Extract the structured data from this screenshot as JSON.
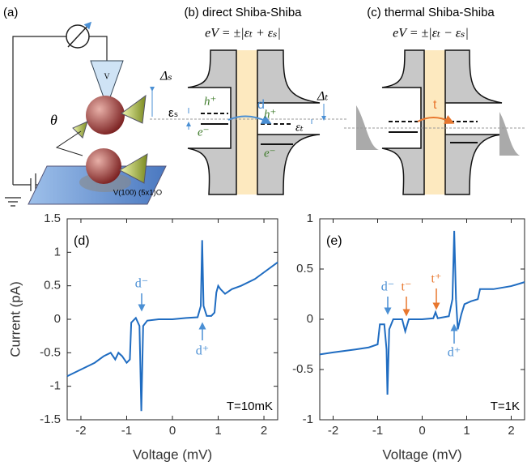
{
  "diagram": {
    "panel_a": {
      "label": "(a)",
      "tip_label": "V",
      "angle_label": "θ",
      "substrate_label": "V(100) (5x1)O"
    },
    "panel_b": {
      "title": "(b) direct Shiba-Shiba",
      "formula": "eV = ±|εₜ + εₛ|",
      "delta_s": "Δₛ",
      "delta_t": "Δₜ",
      "eps_s": "εₛ",
      "eps_t": "εₜ",
      "hole_left": "h⁺",
      "electron_left": "e⁻",
      "hole_right": "h⁺",
      "electron_right": "e⁻",
      "process": "d"
    },
    "panel_c": {
      "title": "(c) thermal Shiba-Shiba",
      "formula": "eV = ±|εₜ − εₛ|",
      "process": "t"
    }
  },
  "chart_data": [
    {
      "type": "line",
      "panel_label": "(d)",
      "xlabel": "Voltage (mV)",
      "ylabel": "Current (pA)",
      "temperature": "T=10mK",
      "annotations": [
        "d⁻",
        "d⁺"
      ],
      "xlim": [
        -2.3,
        2.3
      ],
      "xticks": [
        -2,
        -1,
        0,
        1,
        2
      ],
      "ylim": [
        -1.5,
        1.5
      ],
      "yticks": [
        -1.5,
        -1,
        -0.5,
        0,
        0.5,
        1,
        1.5
      ],
      "series": [
        {
          "color": "#1f6cc1",
          "x": [
            -2.3,
            -2.0,
            -1.7,
            -1.5,
            -1.35,
            -1.25,
            -1.18,
            -1.1,
            -1.0,
            -0.93,
            -0.9,
            -0.8,
            -0.72,
            -0.68,
            -0.64,
            -0.55,
            -0.3,
            0,
            0.3,
            0.55,
            0.62,
            0.65,
            0.68,
            0.75,
            0.85,
            0.92,
            0.96,
            1.0,
            1.05,
            1.15,
            1.3,
            1.5,
            1.8,
            2.0,
            2.3
          ],
          "values": [
            -0.85,
            -0.75,
            -0.65,
            -0.55,
            -0.5,
            -0.6,
            -0.5,
            -0.55,
            -0.65,
            -0.6,
            -0.05,
            0.02,
            -0.1,
            -1.37,
            -0.1,
            -0.02,
            0,
            0,
            0.02,
            0.03,
            0.2,
            1.18,
            0.2,
            0.05,
            0.05,
            0.1,
            0.4,
            0.5,
            0.45,
            0.38,
            0.45,
            0.5,
            0.6,
            0.7,
            0.85
          ]
        }
      ]
    },
    {
      "type": "line",
      "panel_label": "(e)",
      "xlabel": "Voltage (mV)",
      "temperature": "T=1K",
      "annotations": [
        "d⁻",
        "t⁻",
        "t⁺",
        "d⁺"
      ],
      "xlim": [
        -2.3,
        2.3
      ],
      "xticks": [
        -2,
        -1,
        0,
        1,
        2
      ],
      "ylim": [
        -1,
        1
      ],
      "yticks": [
        -1,
        -0.5,
        0,
        0.5,
        1
      ],
      "series": [
        {
          "color": "#1f6cc1",
          "x": [
            -2.3,
            -2.0,
            -1.5,
            -1.2,
            -1.0,
            -0.95,
            -0.85,
            -0.8,
            -0.78,
            -0.74,
            -0.65,
            -0.45,
            -0.38,
            -0.3,
            0,
            0.25,
            0.3,
            0.35,
            0.6,
            0.68,
            0.72,
            0.76,
            0.8,
            0.88,
            0.95,
            1.1,
            1.25,
            1.3,
            1.6,
            2.0,
            2.3
          ],
          "values": [
            -0.35,
            -0.33,
            -0.3,
            -0.28,
            -0.25,
            -0.05,
            -0.05,
            -0.3,
            -0.75,
            -0.1,
            0,
            0,
            -0.12,
            0,
            0,
            0.01,
            0.07,
            0.01,
            0.03,
            0.2,
            0.88,
            0.2,
            -0.1,
            0.05,
            0.15,
            0.18,
            0.2,
            0.3,
            0.3,
            0.33,
            0.37
          ]
        }
      ]
    }
  ]
}
